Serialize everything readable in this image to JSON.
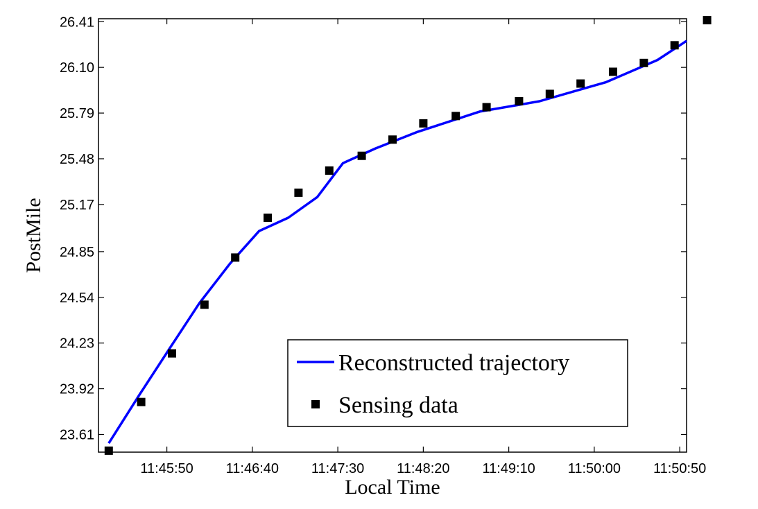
{
  "chart_data": {
    "type": "line",
    "xlabel": "Local Time",
    "ylabel": "PostMile",
    "xlim_seconds": [
      42310,
      42654
    ],
    "ylim": [
      23.49,
      26.43
    ],
    "x_ticks": [
      "11:45:50",
      "11:46:40",
      "11:47:30",
      "11:48:20",
      "11:49:10",
      "11:50:00",
      "11:50:50"
    ],
    "y_ticks": [
      "23.61",
      "23.92",
      "24.23",
      "24.54",
      "24.85",
      "25.17",
      "25.48",
      "25.79",
      "26.10",
      "26.41"
    ],
    "grid": false,
    "legend_position": "bottom-right",
    "series": [
      {
        "name": "Reconstructed trajectory",
        "style": "line",
        "color": "#0000ff",
        "x": [
          "11:45:16",
          "11:45:34",
          "11:45:52",
          "11:46:09",
          "11:46:27",
          "11:46:44",
          "11:47:01",
          "11:47:18",
          "11:47:33",
          "11:47:52",
          "11:48:16",
          "11:48:53",
          "11:49:28",
          "11:50:07",
          "11:50:37",
          "11:50:54"
        ],
        "values": [
          23.55,
          23.88,
          24.2,
          24.5,
          24.77,
          24.99,
          25.08,
          25.22,
          25.45,
          25.55,
          25.66,
          25.8,
          25.87,
          26.0,
          26.15,
          26.28
        ]
      },
      {
        "name": "Sensing data",
        "style": "marker",
        "color": "#000000",
        "x": [
          "11:45:16",
          "11:45:35",
          "11:45:53",
          "11:46:12",
          "11:46:30",
          "11:46:49",
          "11:47:07",
          "11:47:25",
          "11:47:44",
          "11:48:02",
          "11:48:20",
          "11:48:39",
          "11:48:57",
          "11:49:16",
          "11:49:34",
          "11:49:52",
          "11:50:11",
          "11:50:29",
          "11:50:47",
          "11:51:06"
        ],
        "values": [
          23.5,
          23.83,
          24.16,
          24.49,
          24.81,
          25.08,
          25.25,
          25.4,
          25.5,
          25.61,
          25.72,
          25.77,
          25.83,
          25.87,
          25.92,
          25.99,
          26.07,
          26.13,
          26.25,
          26.42
        ]
      }
    ]
  }
}
